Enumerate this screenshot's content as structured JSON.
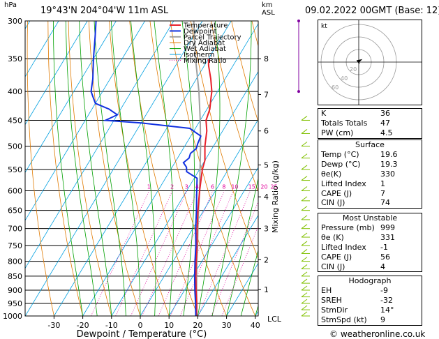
{
  "header": {
    "station": "19°43'N 204°04'W 11m ASL",
    "datetime": "09.02.2022 00GMT (Base: 12)",
    "pressure_unit": "hPa",
    "km_label": "km",
    "asl_label": "ASL",
    "lcl_label": "LCL"
  },
  "chart_data": {
    "type": "line",
    "subtype": "skew-T log-P",
    "xlabel": "Dewpoint / Temperature (°C)",
    "ylabel": "hPa",
    "mixing_axis_label": "Mixing Ratio (g/kg)",
    "x_ticks": [
      -30,
      -20,
      -10,
      0,
      10,
      20,
      30,
      40
    ],
    "pressure_levels": [
      300,
      350,
      400,
      450,
      500,
      550,
      600,
      650,
      700,
      750,
      800,
      850,
      900,
      950,
      1000
    ],
    "km_ticks": [
      {
        "label": "8",
        "p": 350
      },
      {
        "label": "7",
        "p": 405
      },
      {
        "label": "6",
        "p": 470
      },
      {
        "label": "5",
        "p": 540
      },
      {
        "label": "4",
        "p": 615
      },
      {
        "label": "3",
        "p": 700
      },
      {
        "label": "2",
        "p": 795
      },
      {
        "label": "1",
        "p": 898
      }
    ],
    "mixing_ratio_labels": [
      "1",
      "2",
      "3",
      "4",
      "6",
      "8",
      "10",
      "15",
      "20",
      "25"
    ],
    "mixing_ratio_values": [
      1,
      2,
      3,
      4,
      6,
      8,
      10,
      15,
      20,
      25
    ],
    "legend": [
      "Temperature",
      "Dewpoint",
      "Parcel Trajectory",
      "Dry Adiabat",
      "Wet Adiabat",
      "Isotherm",
      "Mixing Ratio"
    ],
    "legend_position": "top-right",
    "series": [
      {
        "name": "Temperature",
        "color": "#e8202a",
        "points": [
          [
            1000,
            19.6
          ],
          [
            950,
            17.0
          ],
          [
            900,
            14.0
          ],
          [
            850,
            11.0
          ],
          [
            800,
            8.0
          ],
          [
            750,
            5.0
          ],
          [
            700,
            1.5
          ],
          [
            650,
            -2.0
          ],
          [
            600,
            -5.5
          ],
          [
            550,
            -9.0
          ],
          [
            530,
            -10.0
          ],
          [
            500,
            -13.0
          ],
          [
            470,
            -15.5
          ],
          [
            450,
            -18.0
          ],
          [
            430,
            -19.0
          ],
          [
            410,
            -21.0
          ],
          [
            400,
            -22.0
          ],
          [
            380,
            -25.0
          ],
          [
            360,
            -28.5
          ],
          [
            350,
            -30.0
          ]
        ]
      },
      {
        "name": "Dewpoint",
        "color": "#1030e0",
        "points": [
          [
            1000,
            19.3
          ],
          [
            950,
            16.6
          ],
          [
            900,
            13.6
          ],
          [
            850,
            10.6
          ],
          [
            800,
            7.6
          ],
          [
            750,
            4.6
          ],
          [
            700,
            1.0
          ],
          [
            650,
            -2.5
          ],
          [
            600,
            -6.5
          ],
          [
            570,
            -9.0
          ],
          [
            555,
            -14.0
          ],
          [
            545,
            -15.0
          ],
          [
            535,
            -17.0
          ],
          [
            525,
            -16.0
          ],
          [
            515,
            -16.5
          ],
          [
            505,
            -15.5
          ],
          [
            495,
            -16.0
          ],
          [
            480,
            -16.5
          ],
          [
            465,
            -22.0
          ],
          [
            455,
            -40.0
          ],
          [
            450,
            -53.0
          ],
          [
            440,
            -50.0
          ],
          [
            430,
            -54.0
          ],
          [
            420,
            -60.0
          ],
          [
            410,
            -62.0
          ],
          [
            400,
            -64.0
          ],
          [
            380,
            -66.0
          ],
          [
            350,
            -70.0
          ],
          [
            320,
            -74.0
          ],
          [
            300,
            -77.0
          ]
        ]
      },
      {
        "name": "Parcel Trajectory",
        "color": "#a0a0a0",
        "points": [
          [
            1000,
            19.6
          ],
          [
            950,
            17.0
          ],
          [
            900,
            14.2
          ],
          [
            850,
            11.3
          ],
          [
            800,
            8.3
          ],
          [
            750,
            5.2
          ],
          [
            700,
            1.8
          ],
          [
            650,
            -1.8
          ],
          [
            600,
            -5.5
          ],
          [
            550,
            -9.8
          ],
          [
            500,
            -14.5
          ],
          [
            450,
            -20.0
          ],
          [
            400,
            -26.5
          ],
          [
            350,
            -34.5
          ],
          [
            300,
            -43.0
          ]
        ]
      }
    ],
    "x_range": [
      -35,
      40
    ],
    "p_range": [
      1000,
      300
    ]
  },
  "hodograph": {
    "label": "kt",
    "rings": [
      "20",
      "40",
      "60"
    ]
  },
  "indices": {
    "rows": [
      {
        "label": "K",
        "value": "36"
      },
      {
        "label": "Totals Totals",
        "value": "47"
      },
      {
        "label": "PW (cm)",
        "value": "4.5"
      }
    ]
  },
  "surface": {
    "title": "Surface",
    "rows": [
      {
        "label": "Temp (°C)",
        "value": "19.6"
      },
      {
        "label": "Dewp (°C)",
        "value": "19.3"
      },
      {
        "label": "θe(K)",
        "value": "330"
      },
      {
        "label": "Lifted Index",
        "value": "1"
      },
      {
        "label": "CAPE (J)",
        "value": "7"
      },
      {
        "label": "CIN (J)",
        "value": "74"
      }
    ]
  },
  "most_unstable": {
    "title": "Most Unstable",
    "rows": [
      {
        "label": "Pressure (mb)",
        "value": "999"
      },
      {
        "label": "θe (K)",
        "value": "331"
      },
      {
        "label": "Lifted Index",
        "value": "-1"
      },
      {
        "label": "CAPE (J)",
        "value": "56"
      },
      {
        "label": "CIN (J)",
        "value": "4"
      }
    ]
  },
  "hodograph_stats": {
    "title": "Hodograph",
    "rows": [
      {
        "label": "EH",
        "value": "-9"
      },
      {
        "label": "SREH",
        "value": "-32"
      },
      {
        "label": "StmDir",
        "value": "14°"
      },
      {
        "label": "StmSpd (kt)",
        "value": "9"
      }
    ]
  },
  "credit": "© weatheronline.co.uk",
  "colors": {
    "temperature": "#e8202a",
    "dewpoint": "#1030e0",
    "parcel": "#a0a0a0",
    "dry_adiabat": "#e07a00",
    "wet_adiabat": "#00a000",
    "isotherm": "#00a0e0",
    "mixing_ratio": "#e0009a"
  }
}
